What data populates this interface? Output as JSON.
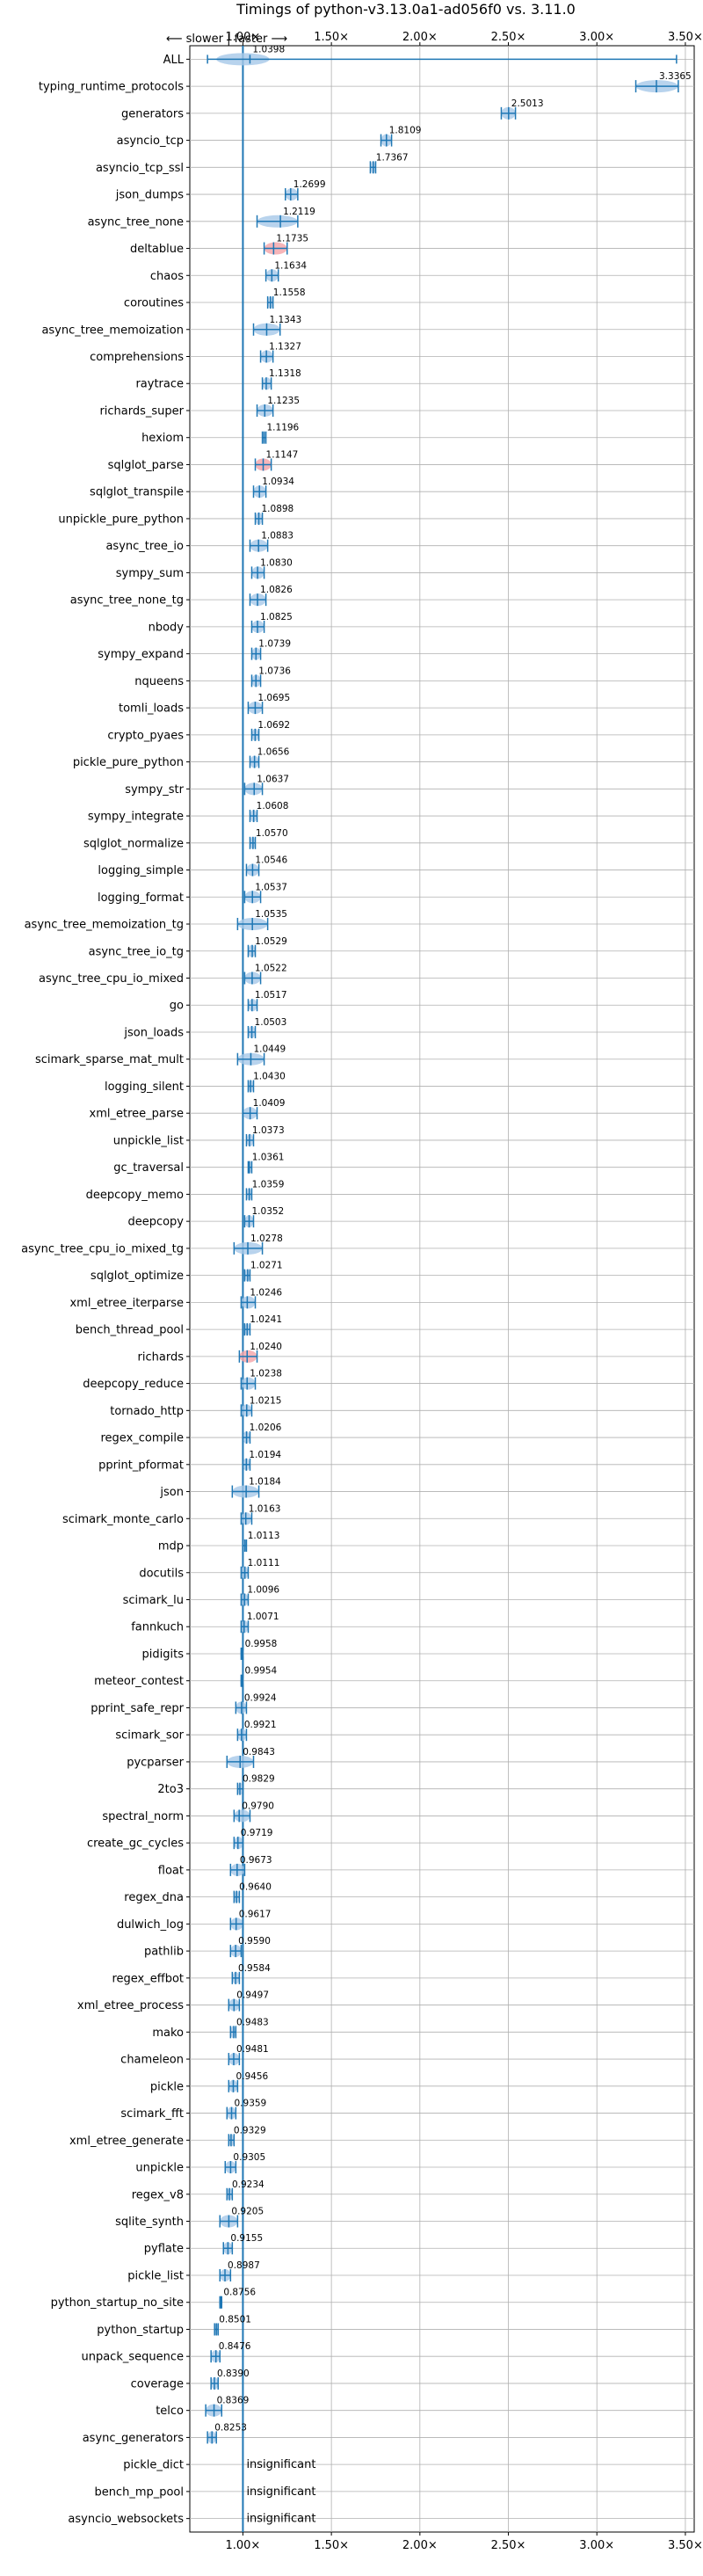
{
  "chart_data": {
    "type": "violin",
    "title": "Timings of python-v3.13.0a1-ad056f0 vs. 3.11.0",
    "direction_hint": "⟵ slower | faster ⟶",
    "xlim": [
      0.7,
      3.55
    ],
    "xticks": [
      {
        "value": 1.0,
        "label": "1.00×"
      },
      {
        "value": 1.5,
        "label": "1.50×"
      },
      {
        "value": 2.0,
        "label": "2.00×"
      },
      {
        "value": 2.5,
        "label": "2.50×"
      },
      {
        "value": 3.0,
        "label": "3.00×"
      },
      {
        "value": 3.5,
        "label": "3.50×"
      }
    ],
    "reference_line": 1.0,
    "insignificant_label": "insignificant",
    "colors": {
      "violin": "#a6c8e8",
      "marker": "#1f77b4",
      "highlight": "#f4a3a8",
      "grid": "#b0b0b0"
    },
    "benchmarks": [
      {
        "name": "ALL",
        "value": 1.0398,
        "low": 0.8,
        "high": 3.45
      },
      {
        "name": "typing_runtime_protocols",
        "value": 3.3365,
        "low": 3.22,
        "high": 3.46
      },
      {
        "name": "generators",
        "value": 2.5013,
        "low": 2.46,
        "high": 2.54
      },
      {
        "name": "asyncio_tcp",
        "value": 1.8109,
        "low": 1.78,
        "high": 1.84
      },
      {
        "name": "asyncio_tcp_ssl",
        "value": 1.7367,
        "low": 1.72,
        "high": 1.75
      },
      {
        "name": "json_dumps",
        "value": 1.2699,
        "low": 1.24,
        "high": 1.31
      },
      {
        "name": "async_tree_none",
        "value": 1.2119,
        "low": 1.08,
        "high": 1.31
      },
      {
        "name": "deltablue",
        "value": 1.1735,
        "low": 1.12,
        "high": 1.25
      },
      {
        "name": "chaos",
        "value": 1.1634,
        "low": 1.13,
        "high": 1.2
      },
      {
        "name": "coroutines",
        "value": 1.1558,
        "low": 1.14,
        "high": 1.17
      },
      {
        "name": "async_tree_memoization",
        "value": 1.1343,
        "low": 1.06,
        "high": 1.21
      },
      {
        "name": "comprehensions",
        "value": 1.1327,
        "low": 1.1,
        "high": 1.17
      },
      {
        "name": "raytrace",
        "value": 1.1318,
        "low": 1.11,
        "high": 1.16
      },
      {
        "name": "richards_super",
        "value": 1.1235,
        "low": 1.08,
        "high": 1.17
      },
      {
        "name": "hexiom",
        "value": 1.1196,
        "low": 1.11,
        "high": 1.13
      },
      {
        "name": "sqlglot_parse",
        "value": 1.1147,
        "low": 1.07,
        "high": 1.16
      },
      {
        "name": "sqlglot_transpile",
        "value": 1.0934,
        "low": 1.06,
        "high": 1.13
      },
      {
        "name": "unpickle_pure_python",
        "value": 1.0898,
        "low": 1.07,
        "high": 1.11
      },
      {
        "name": "async_tree_io",
        "value": 1.0883,
        "low": 1.04,
        "high": 1.14
      },
      {
        "name": "sympy_sum",
        "value": 1.083,
        "low": 1.05,
        "high": 1.12
      },
      {
        "name": "async_tree_none_tg",
        "value": 1.0826,
        "low": 1.04,
        "high": 1.13
      },
      {
        "name": "nbody",
        "value": 1.0825,
        "low": 1.05,
        "high": 1.12
      },
      {
        "name": "sympy_expand",
        "value": 1.0739,
        "low": 1.05,
        "high": 1.1
      },
      {
        "name": "nqueens",
        "value": 1.0736,
        "low": 1.05,
        "high": 1.1
      },
      {
        "name": "tomli_loads",
        "value": 1.0695,
        "low": 1.03,
        "high": 1.11
      },
      {
        "name": "crypto_pyaes",
        "value": 1.0692,
        "low": 1.05,
        "high": 1.09
      },
      {
        "name": "pickle_pure_python",
        "value": 1.0656,
        "low": 1.04,
        "high": 1.09
      },
      {
        "name": "sympy_str",
        "value": 1.0637,
        "low": 1.01,
        "high": 1.11
      },
      {
        "name": "sympy_integrate",
        "value": 1.0608,
        "low": 1.04,
        "high": 1.08
      },
      {
        "name": "sqlglot_normalize",
        "value": 1.057,
        "low": 1.04,
        "high": 1.07
      },
      {
        "name": "logging_simple",
        "value": 1.0546,
        "low": 1.02,
        "high": 1.09
      },
      {
        "name": "logging_format",
        "value": 1.0537,
        "low": 1.01,
        "high": 1.1
      },
      {
        "name": "async_tree_memoization_tg",
        "value": 1.0535,
        "low": 0.97,
        "high": 1.14
      },
      {
        "name": "async_tree_io_tg",
        "value": 1.0529,
        "low": 1.03,
        "high": 1.07
      },
      {
        "name": "async_tree_cpu_io_mixed",
        "value": 1.0522,
        "low": 1.01,
        "high": 1.1
      },
      {
        "name": "go",
        "value": 1.0517,
        "low": 1.03,
        "high": 1.08
      },
      {
        "name": "json_loads",
        "value": 1.0503,
        "low": 1.03,
        "high": 1.07
      },
      {
        "name": "scimark_sparse_mat_mult",
        "value": 1.0449,
        "low": 0.97,
        "high": 1.12
      },
      {
        "name": "logging_silent",
        "value": 1.043,
        "low": 1.03,
        "high": 1.06
      },
      {
        "name": "xml_etree_parse",
        "value": 1.0409,
        "low": 1.0,
        "high": 1.08
      },
      {
        "name": "unpickle_list",
        "value": 1.0373,
        "low": 1.02,
        "high": 1.06
      },
      {
        "name": "gc_traversal",
        "value": 1.0361,
        "low": 1.03,
        "high": 1.05
      },
      {
        "name": "deepcopy_memo",
        "value": 1.0359,
        "low": 1.02,
        "high": 1.05
      },
      {
        "name": "deepcopy",
        "value": 1.0352,
        "low": 1.01,
        "high": 1.06
      },
      {
        "name": "async_tree_cpu_io_mixed_tg",
        "value": 1.0278,
        "low": 0.95,
        "high": 1.11
      },
      {
        "name": "sqlglot_optimize",
        "value": 1.0271,
        "low": 1.01,
        "high": 1.04
      },
      {
        "name": "xml_etree_iterparse",
        "value": 1.0246,
        "low": 0.99,
        "high": 1.07
      },
      {
        "name": "bench_thread_pool",
        "value": 1.0241,
        "low": 1.01,
        "high": 1.04
      },
      {
        "name": "richards",
        "value": 1.024,
        "low": 0.98,
        "high": 1.08
      },
      {
        "name": "deepcopy_reduce",
        "value": 1.0238,
        "low": 0.99,
        "high": 1.07
      },
      {
        "name": "tornado_http",
        "value": 1.0215,
        "low": 0.99,
        "high": 1.05
      },
      {
        "name": "regex_compile",
        "value": 1.0206,
        "low": 1.0,
        "high": 1.04
      },
      {
        "name": "pprint_pformat",
        "value": 1.0194,
        "low": 1.0,
        "high": 1.04
      },
      {
        "name": "json",
        "value": 1.0184,
        "low": 0.94,
        "high": 1.09
      },
      {
        "name": "scimark_monte_carlo",
        "value": 1.0163,
        "low": 0.99,
        "high": 1.05
      },
      {
        "name": "mdp",
        "value": 1.0113,
        "low": 1.0,
        "high": 1.02
      },
      {
        "name": "docutils",
        "value": 1.0111,
        "low": 0.99,
        "high": 1.03
      },
      {
        "name": "scimark_lu",
        "value": 1.0096,
        "low": 0.99,
        "high": 1.03
      },
      {
        "name": "fannkuch",
        "value": 1.0071,
        "low": 0.99,
        "high": 1.03
      },
      {
        "name": "pidigits",
        "value": 0.9958,
        "low": 0.99,
        "high": 1.0
      },
      {
        "name": "meteor_contest",
        "value": 0.9954,
        "low": 0.99,
        "high": 1.0
      },
      {
        "name": "pprint_safe_repr",
        "value": 0.9924,
        "low": 0.96,
        "high": 1.02
      },
      {
        "name": "scimark_sor",
        "value": 0.9921,
        "low": 0.97,
        "high": 1.02
      },
      {
        "name": "pycparser",
        "value": 0.9843,
        "low": 0.91,
        "high": 1.06
      },
      {
        "name": "2to3",
        "value": 0.9829,
        "low": 0.97,
        "high": 1.0
      },
      {
        "name": "spectral_norm",
        "value": 0.979,
        "low": 0.95,
        "high": 1.04
      },
      {
        "name": "create_gc_cycles",
        "value": 0.9719,
        "low": 0.95,
        "high": 1.0
      },
      {
        "name": "float",
        "value": 0.9673,
        "low": 0.93,
        "high": 1.01
      },
      {
        "name": "regex_dna",
        "value": 0.964,
        "low": 0.95,
        "high": 0.98
      },
      {
        "name": "dulwich_log",
        "value": 0.9617,
        "low": 0.93,
        "high": 1.0
      },
      {
        "name": "pathlib",
        "value": 0.959,
        "low": 0.93,
        "high": 0.99
      },
      {
        "name": "regex_effbot",
        "value": 0.9584,
        "low": 0.94,
        "high": 0.98
      },
      {
        "name": "xml_etree_process",
        "value": 0.9497,
        "low": 0.92,
        "high": 0.98
      },
      {
        "name": "mako",
        "value": 0.9483,
        "low": 0.93,
        "high": 0.96
      },
      {
        "name": "chameleon",
        "value": 0.9481,
        "low": 0.92,
        "high": 0.98
      },
      {
        "name": "pickle",
        "value": 0.9456,
        "low": 0.92,
        "high": 0.97
      },
      {
        "name": "scimark_fft",
        "value": 0.9359,
        "low": 0.91,
        "high": 0.96
      },
      {
        "name": "xml_etree_generate",
        "value": 0.9329,
        "low": 0.92,
        "high": 0.95
      },
      {
        "name": "unpickle",
        "value": 0.9305,
        "low": 0.9,
        "high": 0.96
      },
      {
        "name": "regex_v8",
        "value": 0.9234,
        "low": 0.91,
        "high": 0.94
      },
      {
        "name": "sqlite_synth",
        "value": 0.9205,
        "low": 0.87,
        "high": 0.97
      },
      {
        "name": "pyflate",
        "value": 0.9155,
        "low": 0.89,
        "high": 0.94
      },
      {
        "name": "pickle_list",
        "value": 0.8987,
        "low": 0.87,
        "high": 0.93
      },
      {
        "name": "python_startup_no_site",
        "value": 0.8756,
        "low": 0.87,
        "high": 0.88
      },
      {
        "name": "python_startup",
        "value": 0.8501,
        "low": 0.84,
        "high": 0.86
      },
      {
        "name": "unpack_sequence",
        "value": 0.8476,
        "low": 0.82,
        "high": 0.87
      },
      {
        "name": "coverage",
        "value": 0.839,
        "low": 0.82,
        "high": 0.86
      },
      {
        "name": "telco",
        "value": 0.8369,
        "low": 0.79,
        "high": 0.88
      },
      {
        "name": "async_generators",
        "value": 0.8253,
        "low": 0.8,
        "high": 0.85
      },
      {
        "name": "pickle_dict",
        "value": null,
        "insignificant": true
      },
      {
        "name": "bench_mp_pool",
        "value": null,
        "insignificant": true
      },
      {
        "name": "asyncio_websockets",
        "value": null,
        "insignificant": true
      }
    ]
  }
}
